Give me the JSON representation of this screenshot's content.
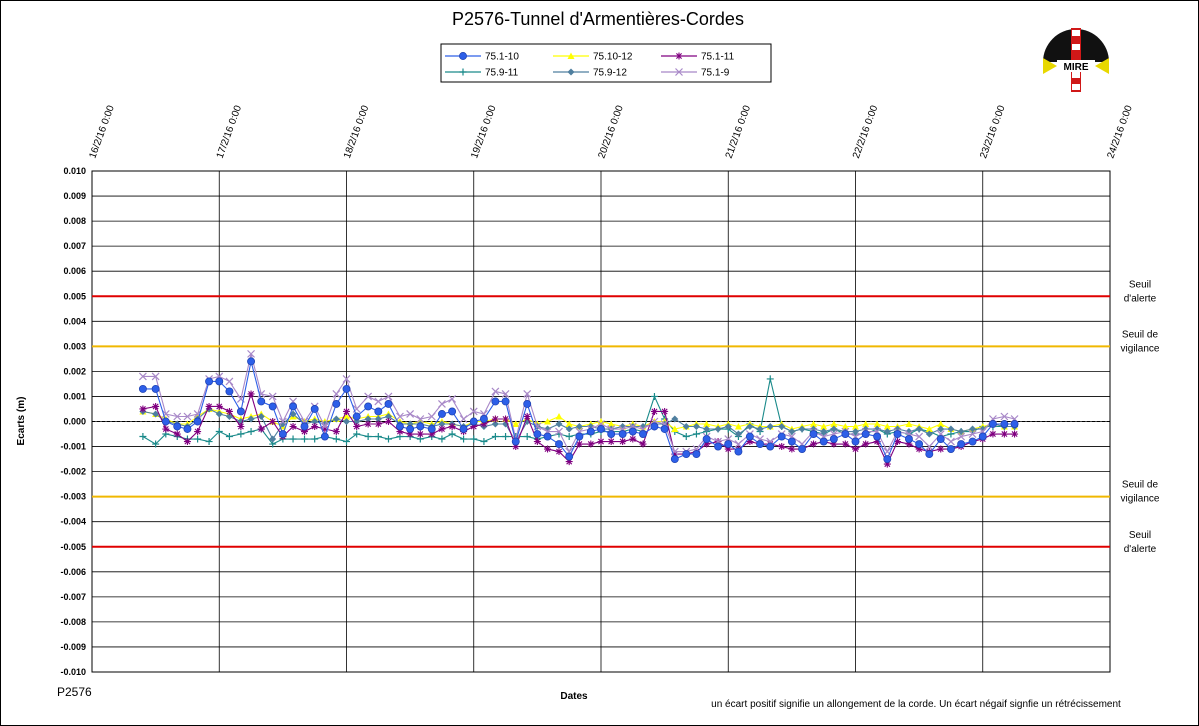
{
  "chart_data": {
    "type": "line",
    "title": "P2576-Tunnel  d'Armentières-Cordes",
    "xlabel": "Dates",
    "ylabel": "Ecarts (m)",
    "ylim": [
      -0.01,
      0.01
    ],
    "y_ticks": [
      "0.010",
      "0.009",
      "0.008",
      "0.007",
      "0.006",
      "0.005",
      "0.004",
      "0.003",
      "0.002",
      "0.001",
      "0.000",
      "-0.001",
      "-0.002",
      "-0.003",
      "-0.004",
      "-0.005",
      "-0.006",
      "-0.007",
      "-0.008",
      "-0.009",
      "-0.010"
    ],
    "x_ticks": [
      "16/2/16 0:00",
      "17/2/16 0:00",
      "18/2/16 0:00",
      "19/2/16 0:00",
      "20/2/16 0:00",
      "21/2/16 0:00",
      "22/2/16 0:00",
      "23/2/16 0:00",
      "24/2/16 0:00"
    ],
    "x_tick_values": [
      0,
      1,
      2,
      3,
      4,
      5,
      6,
      7,
      8
    ],
    "grid": true,
    "legend_position": "top-center",
    "thresholds": [
      {
        "value": 0.005,
        "color": "#e00000",
        "label": [
          "Seuil",
          "d'alerte"
        ]
      },
      {
        "value": 0.003,
        "color": "#f0b800",
        "label": [
          "Seuil de",
          "vigilance"
        ]
      },
      {
        "value": -0.003,
        "color": "#f0b800",
        "label": [
          "Seuil de",
          "vigilance"
        ]
      },
      {
        "value": -0.005,
        "color": "#e00000",
        "label": [
          "Seuil",
          "d'alerte"
        ]
      }
    ],
    "x": [
      0.4,
      0.5,
      0.58,
      0.67,
      0.75,
      0.83,
      0.92,
      1.0,
      1.08,
      1.17,
      1.25,
      1.33,
      1.42,
      1.5,
      1.58,
      1.67,
      1.75,
      1.83,
      1.92,
      2.0,
      2.08,
      2.17,
      2.25,
      2.33,
      2.42,
      2.5,
      2.58,
      2.67,
      2.75,
      2.83,
      2.92,
      3.0,
      3.08,
      3.17,
      3.25,
      3.33,
      3.42,
      3.5,
      3.58,
      3.67,
      3.75,
      3.83,
      3.92,
      4.0,
      4.08,
      4.17,
      4.25,
      4.33,
      4.42,
      4.5,
      4.58,
      4.67,
      4.75,
      4.83,
      4.92,
      5.0,
      5.08,
      5.17,
      5.25,
      5.33,
      5.42,
      5.5,
      5.58,
      5.67,
      5.75,
      5.83,
      5.92,
      6.0,
      6.08,
      6.17,
      6.25,
      6.33,
      6.42,
      6.5,
      6.58,
      6.67,
      6.75,
      6.83,
      6.92,
      7.0,
      7.08,
      7.17,
      7.25
    ],
    "series": [
      {
        "name": "75.1-10",
        "color": "#2d5fe8",
        "marker": "circle",
        "values": [
          0.0013,
          0.0013,
          0.0,
          -0.0002,
          -0.0003,
          0.0,
          0.0016,
          0.0016,
          0.0012,
          0.0004,
          0.0024,
          0.0008,
          0.0006,
          -0.0005,
          0.0006,
          -0.0002,
          0.0005,
          -0.0006,
          0.0007,
          0.0013,
          0.0002,
          0.0006,
          0.0004,
          0.0007,
          -0.0002,
          -0.0003,
          -0.0002,
          -0.0003,
          0.0003,
          0.0004,
          -0.0003,
          0.0,
          0.0001,
          0.0008,
          0.0008,
          -0.0008,
          0.0007,
          -0.0005,
          -0.0006,
          -0.0009,
          -0.0014,
          -0.0006,
          -0.0004,
          -0.0003,
          -0.0005,
          -0.0005,
          -0.0004,
          -0.0005,
          -0.0002,
          -0.0003,
          -0.0015,
          -0.0013,
          -0.0013,
          -0.0007,
          -0.001,
          -0.0009,
          -0.0012,
          -0.0006,
          -0.0009,
          -0.001,
          -0.0006,
          -0.0008,
          -0.0011,
          -0.0005,
          -0.0008,
          -0.0007,
          -0.0005,
          -0.0008,
          -0.0005,
          -0.0006,
          -0.0015,
          -0.0005,
          -0.0007,
          -0.0009,
          -0.0013,
          -0.0007,
          -0.0011,
          -0.0009,
          -0.0008,
          -0.0006,
          -0.0001,
          -0.0001,
          -0.0001
        ]
      },
      {
        "name": "75.10-12",
        "color": "#ffff00",
        "marker": "triangle",
        "values": [
          0.0004,
          0.0003,
          0.0001,
          -0.0001,
          -0.0001,
          0.0002,
          0.0005,
          0.0004,
          0.0003,
          0.0001,
          0.0002,
          0.0003,
          0.0,
          -0.0002,
          0.0002,
          0.0,
          0.0001,
          0.0,
          0.0001,
          0.0002,
          0.0001,
          0.0002,
          0.0002,
          0.0003,
          0.0,
          -0.0001,
          0.0,
          -0.0001,
          0.0,
          -0.0001,
          -0.0002,
          0.0,
          0.0,
          0.0001,
          0.0001,
          -0.0001,
          0.0001,
          -0.0001,
          0.0,
          0.0002,
          -0.0001,
          -0.0002,
          -0.0001,
          0.0,
          -0.0001,
          -0.0002,
          -0.0001,
          -0.0002,
          0.0,
          0.0,
          -0.0003,
          -0.0002,
          -0.0001,
          -0.0001,
          -0.0002,
          -0.0001,
          -0.0002,
          -0.0001,
          -0.0002,
          -0.0002,
          -0.0001,
          -0.0003,
          -0.0002,
          -0.0001,
          -0.0002,
          -0.0001,
          -0.0002,
          -0.0002,
          -0.0001,
          -0.0001,
          -0.0002,
          -0.0002,
          -0.0001,
          -0.0002,
          -0.0003,
          -0.0001,
          -0.0003,
          -0.0004,
          -0.0003,
          -0.0002,
          -0.0001,
          -0.0002,
          -0.0002
        ]
      },
      {
        "name": "75.1-11",
        "color": "#800080",
        "marker": "star",
        "values": [
          0.0005,
          0.0006,
          -0.0003,
          -0.0005,
          -0.0008,
          -0.0004,
          0.0006,
          0.0006,
          0.0004,
          -0.0002,
          0.0011,
          -0.0003,
          0.0,
          -0.0006,
          -0.0002,
          -0.0004,
          -0.0002,
          -0.0003,
          -0.0004,
          0.0004,
          -0.0002,
          -0.0001,
          -0.0001,
          0.0,
          -0.0004,
          -0.0005,
          -0.0005,
          -0.0005,
          -0.0003,
          -0.0002,
          -0.0004,
          -0.0002,
          -0.0001,
          0.0001,
          0.0001,
          -0.001,
          0.0002,
          -0.0008,
          -0.0011,
          -0.0012,
          -0.0016,
          -0.0009,
          -0.0009,
          -0.0008,
          -0.0008,
          -0.0008,
          -0.0007,
          -0.0009,
          0.0004,
          0.0004,
          -0.0013,
          -0.0013,
          -0.0012,
          -0.0009,
          -0.0008,
          -0.0011,
          -0.0011,
          -0.0008,
          -0.0009,
          -0.0009,
          -0.001,
          -0.0011,
          -0.0011,
          -0.0009,
          -0.0008,
          -0.0009,
          -0.0009,
          -0.0011,
          -0.0009,
          -0.0008,
          -0.0017,
          -0.0008,
          -0.0009,
          -0.0011,
          -0.0012,
          -0.0011,
          -0.0011,
          -0.001,
          -0.0008,
          -0.0007,
          -0.0005,
          -0.0005,
          -0.0005
        ]
      },
      {
        "name": "75.9-11",
        "color": "#1a8a8a",
        "marker": "plus",
        "values": [
          -0.0006,
          -0.0009,
          -0.0005,
          -0.0006,
          -0.0007,
          -0.0007,
          -0.0008,
          -0.0004,
          -0.0006,
          -0.0005,
          -0.0004,
          -0.0003,
          -0.0009,
          -0.0007,
          -0.0007,
          -0.0007,
          -0.0007,
          -0.0006,
          -0.0007,
          -0.0008,
          -0.0005,
          -0.0006,
          -0.0006,
          -0.0007,
          -0.0006,
          -0.0006,
          -0.0007,
          -0.0006,
          -0.0007,
          -0.0005,
          -0.0007,
          -0.0007,
          -0.0008,
          -0.0006,
          -0.0006,
          -0.0006,
          -0.0006,
          -0.0007,
          -0.0006,
          -0.0005,
          -0.0006,
          -0.0005,
          -0.0005,
          -0.0004,
          -0.0004,
          -0.0004,
          -0.0003,
          -0.0004,
          0.001,
          0.0001,
          -0.0004,
          -0.0006,
          -0.0005,
          -0.0004,
          -0.0003,
          -0.0003,
          -0.0006,
          -0.0001,
          -0.0004,
          0.0017,
          -0.0002,
          -0.0004,
          -0.0003,
          -0.0004,
          -0.0005,
          -0.0003,
          -0.0005,
          -0.0005,
          -0.0005,
          -0.0003,
          -0.0005,
          -0.0004,
          -0.0005,
          -0.0003,
          -0.0004,
          -0.0006,
          -0.0005,
          -0.0004,
          -0.0004,
          -0.0002,
          -0.0002,
          -0.0002,
          -0.0002
        ]
      },
      {
        "name": "75.9-12",
        "color": "#4f7f9f",
        "marker": "diamond",
        "values": [
          0.0004,
          0.0003,
          0.0,
          -0.0001,
          -0.0002,
          0.0001,
          0.0005,
          0.0003,
          0.0002,
          0.0,
          0.0001,
          0.0002,
          -0.0007,
          -0.0001,
          0.0003,
          -0.0001,
          0.0,
          -0.0001,
          0.0001,
          0.0,
          0.0,
          0.0001,
          0.0001,
          0.0002,
          -0.0001,
          -0.0001,
          -0.0001,
          -0.0002,
          -0.0001,
          -0.0001,
          -0.0002,
          -0.0001,
          -0.0002,
          -0.0001,
          -0.0001,
          -0.0008,
          0.0,
          -0.0002,
          -0.0003,
          -0.0001,
          -0.0003,
          -0.0002,
          -0.0002,
          -0.0003,
          -0.0003,
          -0.0002,
          -0.0002,
          -0.0002,
          -0.0001,
          -0.0001,
          0.0001,
          -0.0002,
          -0.0002,
          -0.0003,
          -0.0003,
          -0.0002,
          -0.0005,
          -0.0002,
          -0.0003,
          -0.0002,
          -0.0002,
          -0.0004,
          -0.0003,
          -0.0003,
          -0.0004,
          -0.0003,
          -0.0004,
          -0.0004,
          -0.0003,
          -0.0003,
          -0.0004,
          -0.0003,
          -0.0004,
          -0.0003,
          -0.0005,
          -0.0003,
          -0.0003,
          -0.0004,
          -0.0003,
          -0.0003,
          -0.0001,
          -0.0002,
          -0.0002
        ]
      },
      {
        "name": "75.1-9",
        "color": "#a888c8",
        "marker": "x",
        "values": [
          0.0018,
          0.0018,
          0.0003,
          0.0002,
          0.0002,
          0.0003,
          0.0017,
          0.0018,
          0.0016,
          0.0009,
          0.0027,
          0.0011,
          0.001,
          0.0,
          0.0008,
          0.0,
          0.0006,
          -0.0002,
          0.0011,
          0.0017,
          0.0005,
          0.001,
          0.0008,
          0.001,
          0.0002,
          0.0003,
          0.0001,
          0.0002,
          0.0007,
          0.0009,
          0.0001,
          0.0004,
          0.0003,
          0.0012,
          0.0011,
          -0.0007,
          0.0011,
          -0.0002,
          -0.0004,
          -0.0004,
          -0.0012,
          -0.0004,
          -0.0003,
          -0.0001,
          -0.0003,
          -0.0003,
          -0.0002,
          -0.0003,
          0.0,
          -0.0001,
          -0.0012,
          -0.0012,
          -0.0011,
          -0.0006,
          -0.0008,
          -0.0007,
          -0.0009,
          -0.0005,
          -0.0007,
          -0.0008,
          -0.0005,
          -0.0006,
          -0.0009,
          -0.0004,
          -0.0006,
          -0.0005,
          -0.0004,
          -0.0006,
          -0.0004,
          -0.0004,
          -0.0012,
          -0.0004,
          -0.0005,
          -0.0006,
          -0.001,
          -0.0005,
          -0.0008,
          -0.0006,
          -0.0005,
          -0.0004,
          0.0001,
          0.0002,
          0.0001
        ]
      }
    ]
  },
  "figure": {
    "corner_label": "P2576",
    "note": "un écart positif signifie un allongement de la corde. Un écart négaif signfie un rétrécissement",
    "logo_text": "MIRE"
  }
}
